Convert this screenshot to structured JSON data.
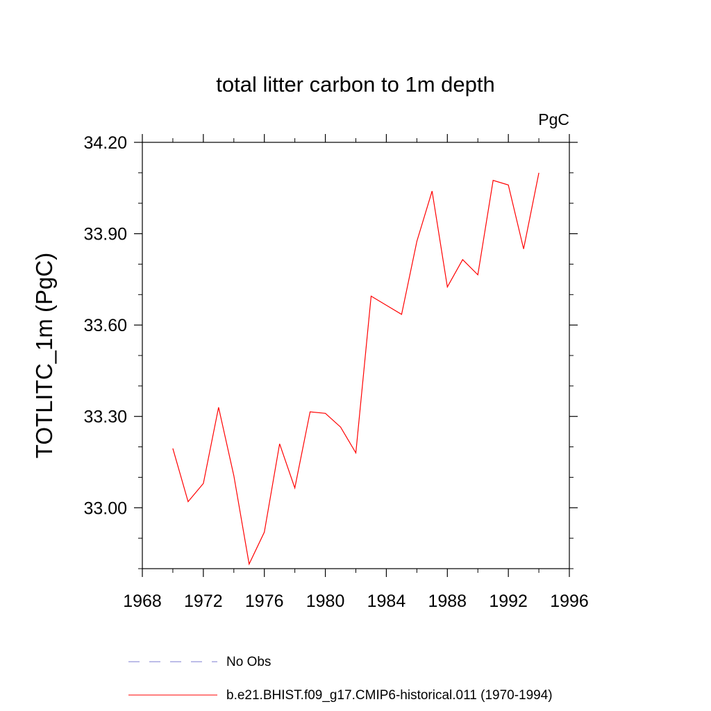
{
  "chart_data": {
    "type": "line",
    "title": "total litter carbon to 1m depth",
    "units": "PgC",
    "xlabel": "",
    "ylabel": "TOTLITC_1m  (PgC)",
    "xlim": [
      1968,
      1996
    ],
    "ylim": [
      32.8,
      34.2
    ],
    "x_ticks": [
      "1968",
      "1972",
      "1976",
      "1980",
      "1984",
      "1988",
      "1992",
      "1996"
    ],
    "y_ticks": [
      "33.00",
      "33.30",
      "33.60",
      "33.90",
      "34.20"
    ],
    "x_tick_values": [
      1968,
      1972,
      1976,
      1980,
      1984,
      1988,
      1992,
      1996
    ],
    "y_tick_values": [
      33.0,
      33.3,
      33.6,
      33.9,
      34.2
    ],
    "grid": false,
    "legend_position": "bottom",
    "series": [
      {
        "name": "b.e21.BHIST.f09_g17.CMIP6-historical.011 (1970-1994)",
        "color": "#ff0000",
        "style": "solid",
        "x": [
          1970,
          1971,
          1972,
          1973,
          1974,
          1975,
          1976,
          1977,
          1978,
          1979,
          1980,
          1981,
          1982,
          1983,
          1984,
          1985,
          1986,
          1987,
          1988,
          1989,
          1990,
          1991,
          1992,
          1993,
          1994
        ],
        "y": [
          33.195,
          33.02,
          33.08,
          33.33,
          33.105,
          32.815,
          32.92,
          33.21,
          33.065,
          33.315,
          33.31,
          33.265,
          33.18,
          33.695,
          33.665,
          33.635,
          33.875,
          34.04,
          33.725,
          33.815,
          33.765,
          34.075,
          34.06,
          33.85,
          34.1
        ]
      }
    ],
    "legend": [
      {
        "label": "No Obs",
        "color": "#7b7bd0",
        "style": "dashed"
      },
      {
        "label": "b.e21.BHIST.f09_g17.CMIP6-historical.011 (1970-1994)",
        "color": "#ff0000",
        "style": "solid"
      }
    ]
  }
}
